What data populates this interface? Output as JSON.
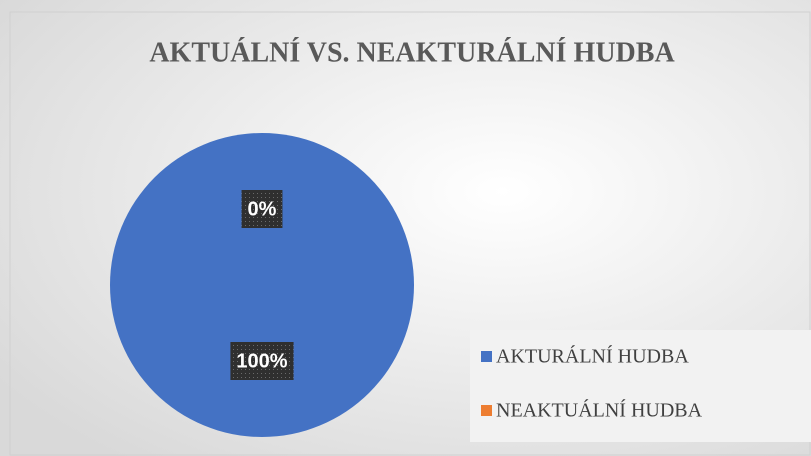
{
  "chart_data": {
    "type": "pie",
    "title": "AKTUÁLNÍ VS. NEAKTURÁLNÍ HUDBA",
    "categories": [
      "AKTURÁLNÍ HUDBA",
      "NEAKTUÁLNÍ HUDBA"
    ],
    "values": [
      100,
      0
    ],
    "value_labels": [
      "100%",
      "0%"
    ],
    "colors": [
      "#4472c4",
      "#ed7d31"
    ],
    "legend": "right"
  }
}
